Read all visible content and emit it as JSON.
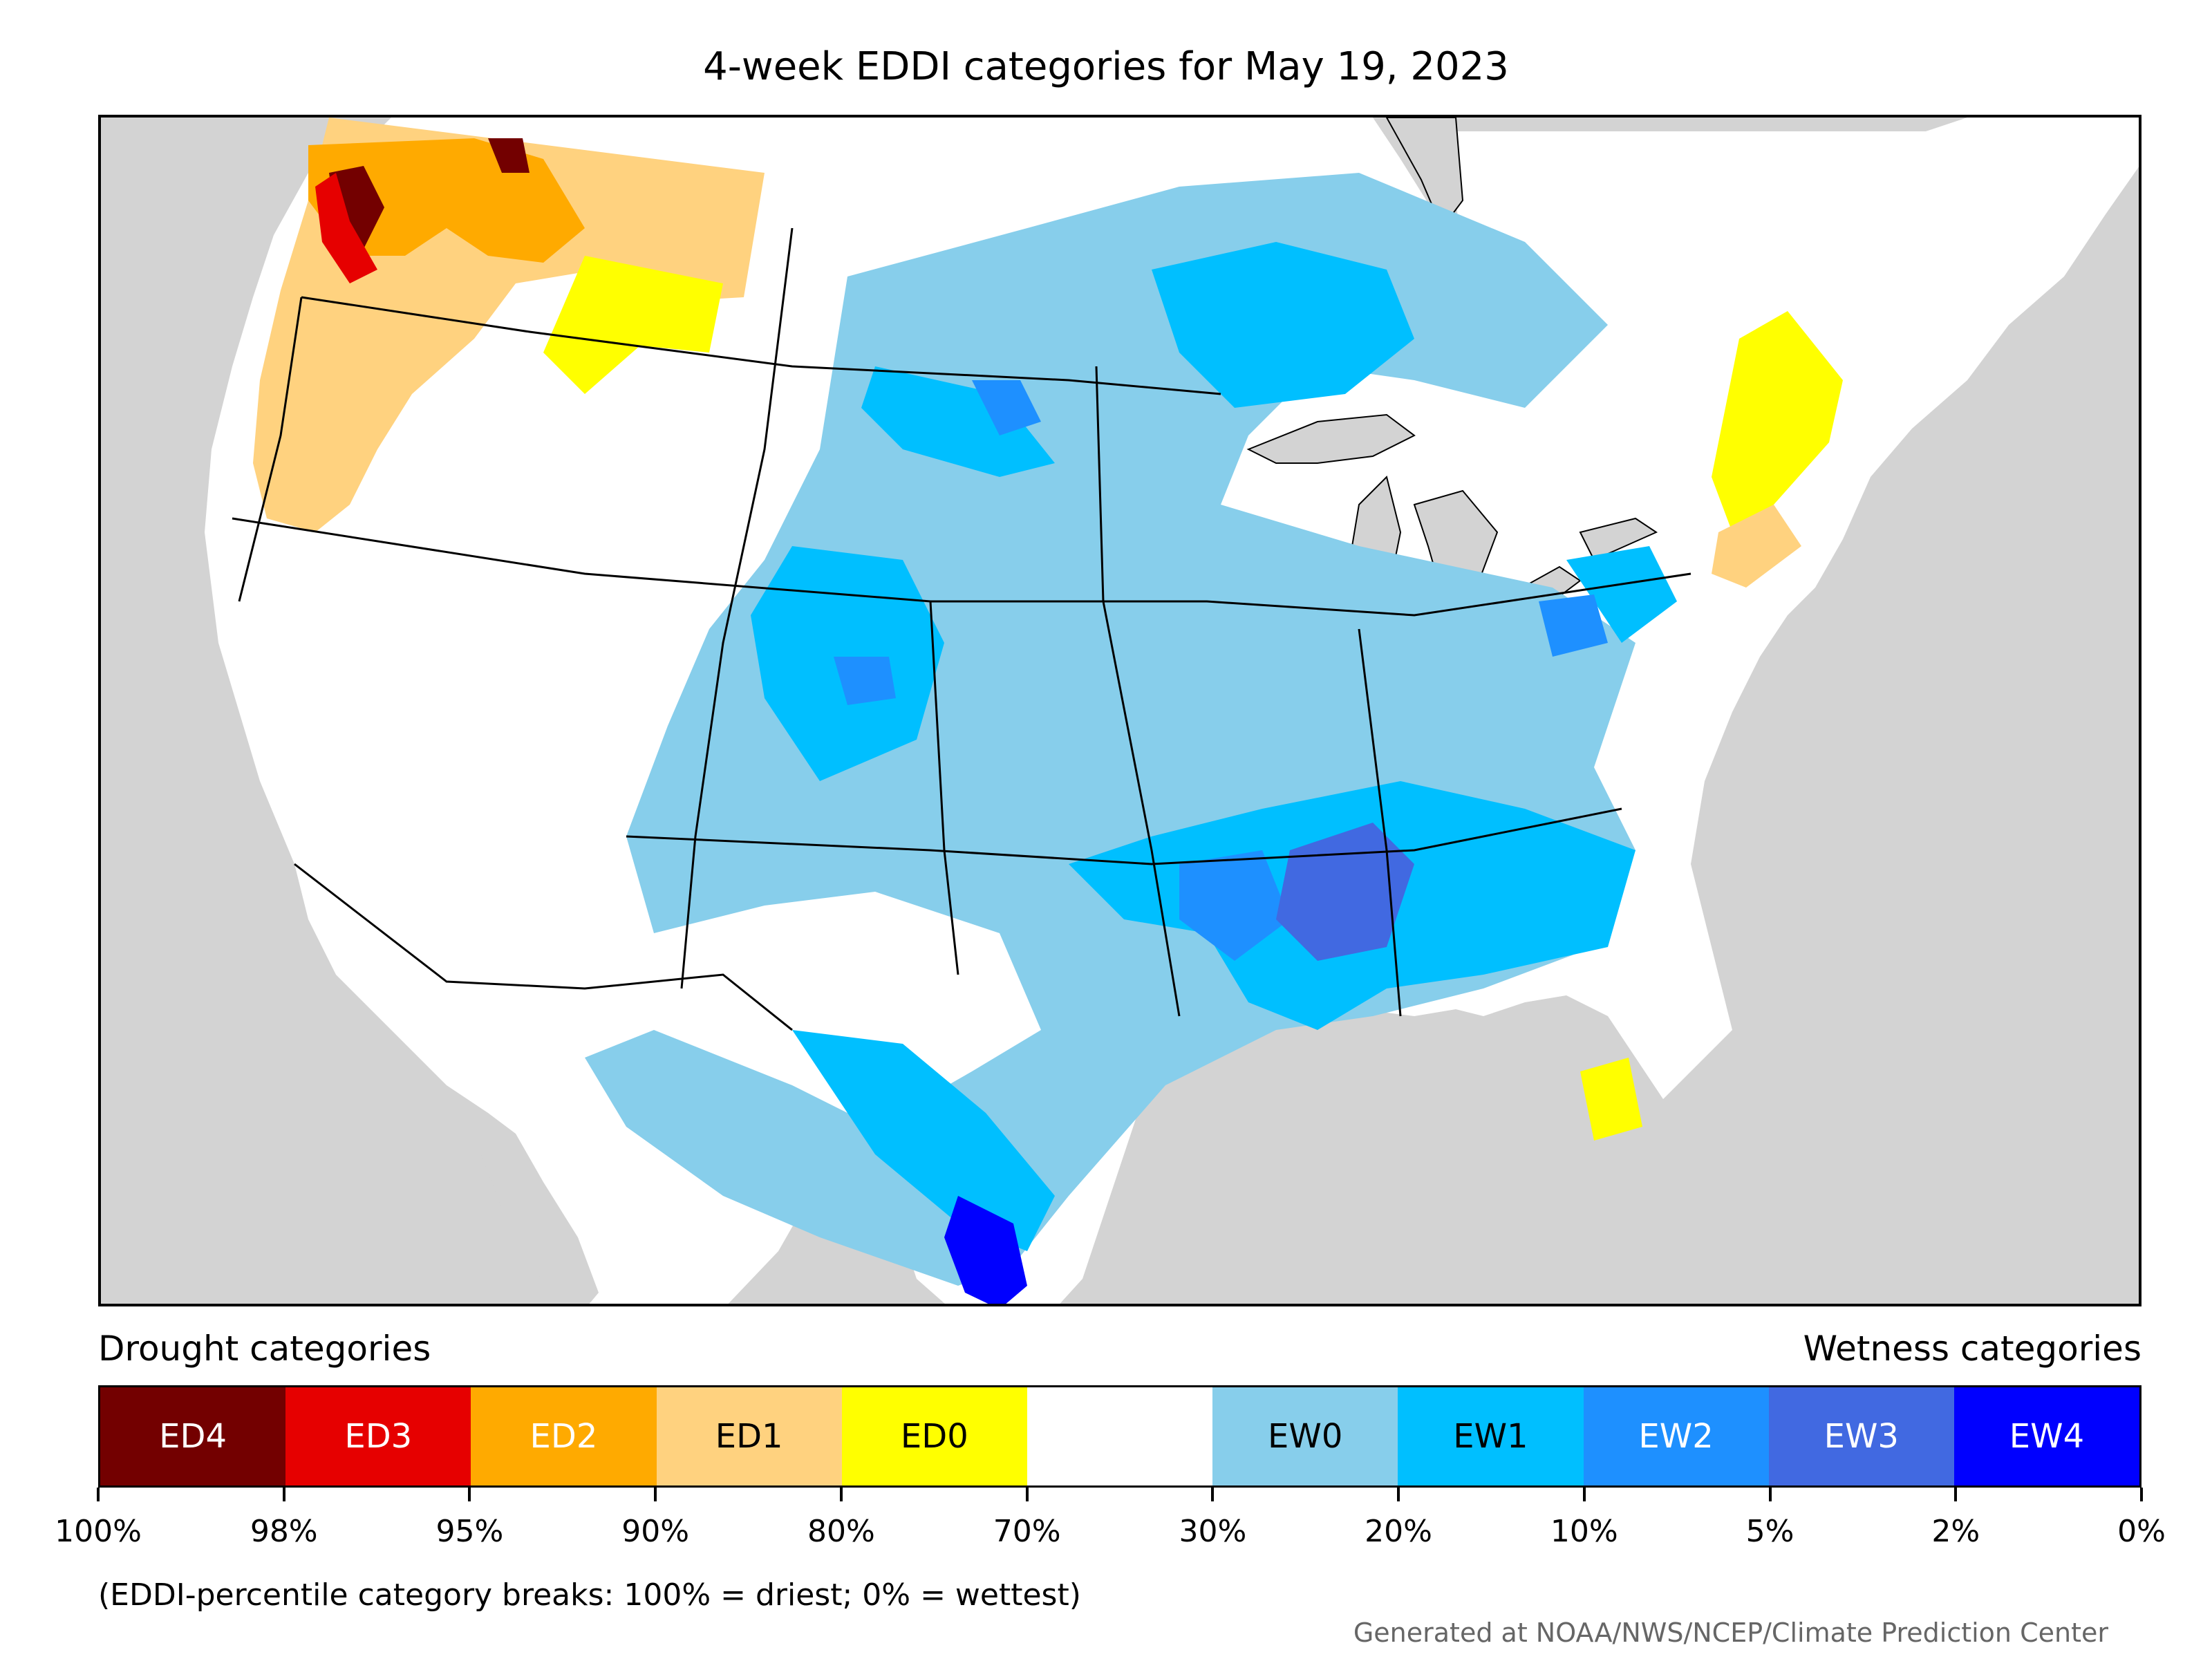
{
  "title": "4-week EDDI categories for May 19, 2023",
  "map": {
    "subject": "United States",
    "background_color": "#d3d3d3",
    "land_color": "#ffffff",
    "regions": [
      {
        "category": "ED1",
        "color": "#ffd27f"
      },
      {
        "category": "ED0",
        "color": "#ffff00"
      },
      {
        "category": "ED2",
        "color": "#ffaa00"
      },
      {
        "category": "ED4",
        "color": "#730000"
      },
      {
        "category": "ED3",
        "color": "#e60000"
      },
      {
        "category": "EW0",
        "color": "#87ceeb"
      },
      {
        "category": "EW1",
        "color": "#00bfff"
      },
      {
        "category": "EW2",
        "color": "#1e90ff"
      },
      {
        "category": "EW3",
        "color": "#4169e1"
      },
      {
        "category": "EW4",
        "color": "#0000ff"
      }
    ]
  },
  "legend": {
    "drought_label": "Drought categories",
    "wetness_label": "Wetness categories",
    "categories": [
      {
        "label": "ED4",
        "color": "#730000",
        "text_color": "#ffffff"
      },
      {
        "label": "ED3",
        "color": "#e60000",
        "text_color": "#ffffff"
      },
      {
        "label": "ED2",
        "color": "#ffaa00",
        "text_color": "#ffffff"
      },
      {
        "label": "ED1",
        "color": "#ffd27f",
        "text_color": "#000000"
      },
      {
        "label": "ED0",
        "color": "#ffff00",
        "text_color": "#000000"
      },
      {
        "label": "",
        "color": "#ffffff",
        "text_color": "#000000"
      },
      {
        "label": "EW0",
        "color": "#87ceeb",
        "text_color": "#000000"
      },
      {
        "label": "EW1",
        "color": "#00bfff",
        "text_color": "#000000"
      },
      {
        "label": "EW2",
        "color": "#1e90ff",
        "text_color": "#ffffff"
      },
      {
        "label": "EW3",
        "color": "#4169e1",
        "text_color": "#ffffff"
      },
      {
        "label": "EW4",
        "color": "#0000ff",
        "text_color": "#ffffff"
      }
    ],
    "breaks": [
      "100%",
      "98%",
      "95%",
      "90%",
      "80%",
      "70%",
      "30%",
      "20%",
      "10%",
      "5%",
      "2%",
      "0%"
    ]
  },
  "note": "(EDDI-percentile category breaks: 100% = driest; 0% = wettest)",
  "credit": "Generated at NOAA/NWS/NCEP/Climate Prediction Center"
}
